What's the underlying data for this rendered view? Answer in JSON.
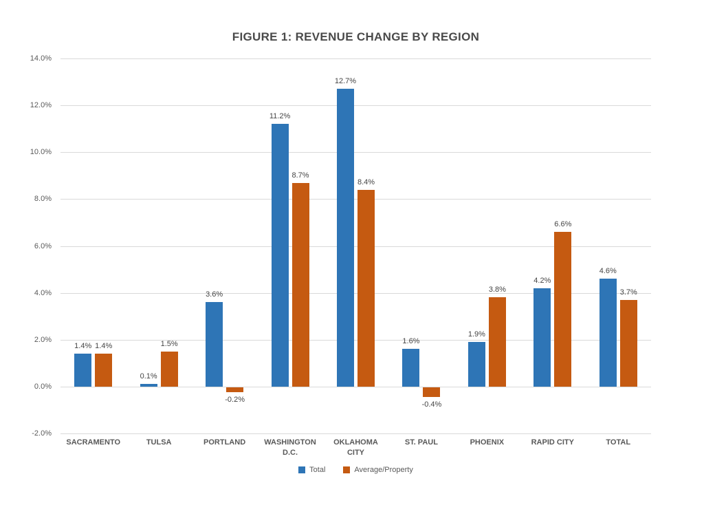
{
  "title": "FIGURE 1: REVENUE CHANGE BY REGION",
  "colors": {
    "series_total": "#2E75B6",
    "series_average": "#C55A11",
    "gridline": "#D9D9D9",
    "axis_text": "#595959",
    "title_text": "#4A4A4A",
    "background": "#FFFFFF"
  },
  "chart_data": {
    "type": "bar",
    "title": "FIGURE 1: REVENUE CHANGE BY REGION",
    "xlabel": "",
    "ylabel": "",
    "categories": [
      "SACRAMENTO",
      "TULSA",
      "PORTLAND",
      "WASHINGTON D.C.",
      "OKLAHOMA CITY",
      "ST. PAUL",
      "PHOENIX",
      "RAPID CITY",
      "TOTAL"
    ],
    "series": [
      {
        "name": "Total",
        "color": "#2E75B6",
        "values": [
          1.4,
          0.1,
          3.6,
          11.2,
          12.7,
          1.6,
          1.9,
          4.2,
          4.6
        ]
      },
      {
        "name": "Average/Property",
        "color": "#C55A11",
        "values": [
          1.4,
          1.5,
          -0.2,
          8.7,
          8.4,
          -0.4,
          3.8,
          6.6,
          3.7
        ]
      }
    ],
    "data_labels": [
      [
        "1.4%",
        "0.1%",
        "3.6%",
        "11.2%",
        "12.7%",
        "1.6%",
        "1.9%",
        "4.2%",
        "4.6%"
      ],
      [
        "1.4%",
        "1.5%",
        "-0.2%",
        "8.7%",
        "8.4%",
        "-0.4%",
        "3.8%",
        "6.6%",
        "3.7%"
      ]
    ],
    "ylim": [
      -2,
      14
    ],
    "ytick_step": 2,
    "ytick_labels": [
      "14.0%",
      "12.0%",
      "10.0%",
      "8.0%",
      "6.0%",
      "4.0%",
      "2.0%",
      "0.0%",
      "-2.0%"
    ],
    "grid": true,
    "legend_position": "bottom",
    "legend_entries": [
      "Total",
      "Average/Property"
    ]
  }
}
